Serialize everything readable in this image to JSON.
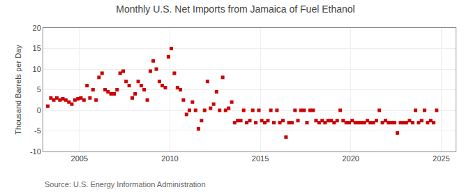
{
  "chart_data": {
    "type": "scatter",
    "title": "Monthly U.S. Net Imports from Jamaica of Fuel Ethanol",
    "ylabel": "Thousand Barrels per Day",
    "annotations": [
      "Source: U.S. Energy Information Administration"
    ],
    "x": [
      2003.25,
      2003.42,
      2003.58,
      2003.75,
      2003.92,
      2004.08,
      2004.25,
      2004.42,
      2004.58,
      2004.75,
      2004.92,
      2005.08,
      2005.25,
      2005.42,
      2005.58,
      2005.75,
      2005.92,
      2006.08,
      2006.25,
      2006.42,
      2006.58,
      2006.75,
      2006.92,
      2007.08,
      2007.25,
      2007.42,
      2007.58,
      2007.75,
      2007.92,
      2008.08,
      2008.25,
      2008.42,
      2008.58,
      2008.75,
      2008.92,
      2009.08,
      2009.25,
      2009.42,
      2009.58,
      2009.75,
      2009.92,
      2010.08,
      2010.25,
      2010.42,
      2010.58,
      2010.75,
      2010.92,
      2011.08,
      2011.25,
      2011.42,
      2011.58,
      2011.75,
      2011.92,
      2012.08,
      2012.25,
      2012.42,
      2012.58,
      2012.75,
      2012.92,
      2013.08,
      2013.25,
      2013.42,
      2013.58,
      2013.75,
      2013.92,
      2014.08,
      2014.25,
      2014.42,
      2014.58,
      2014.75,
      2014.92,
      2015.08,
      2015.25,
      2015.42,
      2015.58,
      2015.75,
      2015.92,
      2016.08,
      2016.25,
      2016.42,
      2016.58,
      2016.75,
      2016.92,
      2017.08,
      2017.25,
      2017.42,
      2017.58,
      2017.75,
      2017.92,
      2018.08,
      2018.25,
      2018.42,
      2018.58,
      2018.75,
      2018.92,
      2019.08,
      2019.25,
      2019.42,
      2019.58,
      2019.75,
      2019.92,
      2020.08,
      2020.25,
      2020.42,
      2020.58,
      2020.75,
      2020.92,
      2021.08,
      2021.25,
      2021.42,
      2021.58,
      2021.75,
      2021.92,
      2022.08,
      2022.25,
      2022.42,
      2022.58,
      2022.75,
      2022.92,
      2023.08,
      2023.25,
      2023.42,
      2023.58,
      2023.75,
      2023.92,
      2024.08,
      2024.25,
      2024.42,
      2024.58,
      2024.75
    ],
    "values": [
      1.0,
      3.0,
      2.5,
      3.0,
      2.5,
      2.8,
      2.5,
      2.0,
      1.5,
      2.5,
      2.8,
      3.0,
      2.5,
      6.0,
      3.0,
      5.0,
      2.5,
      8.0,
      9.0,
      5.0,
      4.5,
      4.0,
      4.0,
      5.0,
      9.0,
      9.5,
      7.0,
      6.0,
      3.0,
      4.0,
      7.0,
      6.0,
      5.0,
      2.5,
      9.5,
      12.0,
      10.0,
      7.0,
      6.0,
      5.5,
      13.0,
      15.0,
      9.0,
      5.5,
      5.0,
      2.5,
      -1.0,
      0.0,
      2.0,
      0.0,
      -4.5,
      -2.5,
      0.0,
      7.0,
      0.5,
      1.5,
      4.5,
      0.0,
      8.0,
      0.0,
      0.5,
      2.0,
      -3.0,
      -2.5,
      -2.5,
      0.0,
      -3.0,
      -2.5,
      0.0,
      -3.0,
      0.0,
      -2.5,
      -3.0,
      -2.5,
      0.0,
      -3.0,
      0.0,
      -3.0,
      -2.5,
      -6.5,
      -3.0,
      -3.0,
      0.0,
      -2.5,
      0.0,
      0.0,
      -3.0,
      0.0,
      0.0,
      -2.5,
      -3.0,
      -2.5,
      -3.0,
      -2.5,
      -2.5,
      -3.0,
      -2.5,
      0.0,
      -2.5,
      -3.0,
      -3.0,
      -2.5,
      -3.0,
      -3.0,
      -3.0,
      -3.0,
      -2.5,
      -3.0,
      -3.0,
      -2.5,
      0.0,
      -3.0,
      -2.5,
      -3.0,
      -3.0,
      -3.0,
      -5.5,
      -3.0,
      -3.0,
      -3.0,
      -2.5,
      -3.0,
      0.0,
      -3.0,
      -2.5,
      0.0,
      -3.0,
      -2.5,
      -3.0,
      0.0
    ],
    "color": "#cc0000",
    "marker": "square",
    "xlim": [
      2003.0,
      2025.8
    ],
    "xticks": [
      2005,
      2010,
      2015,
      2020,
      2025
    ],
    "ylim": [
      -10,
      20
    ],
    "yticks": [
      -10,
      -5,
      0,
      5,
      10,
      15,
      20
    ],
    "grid": true
  }
}
